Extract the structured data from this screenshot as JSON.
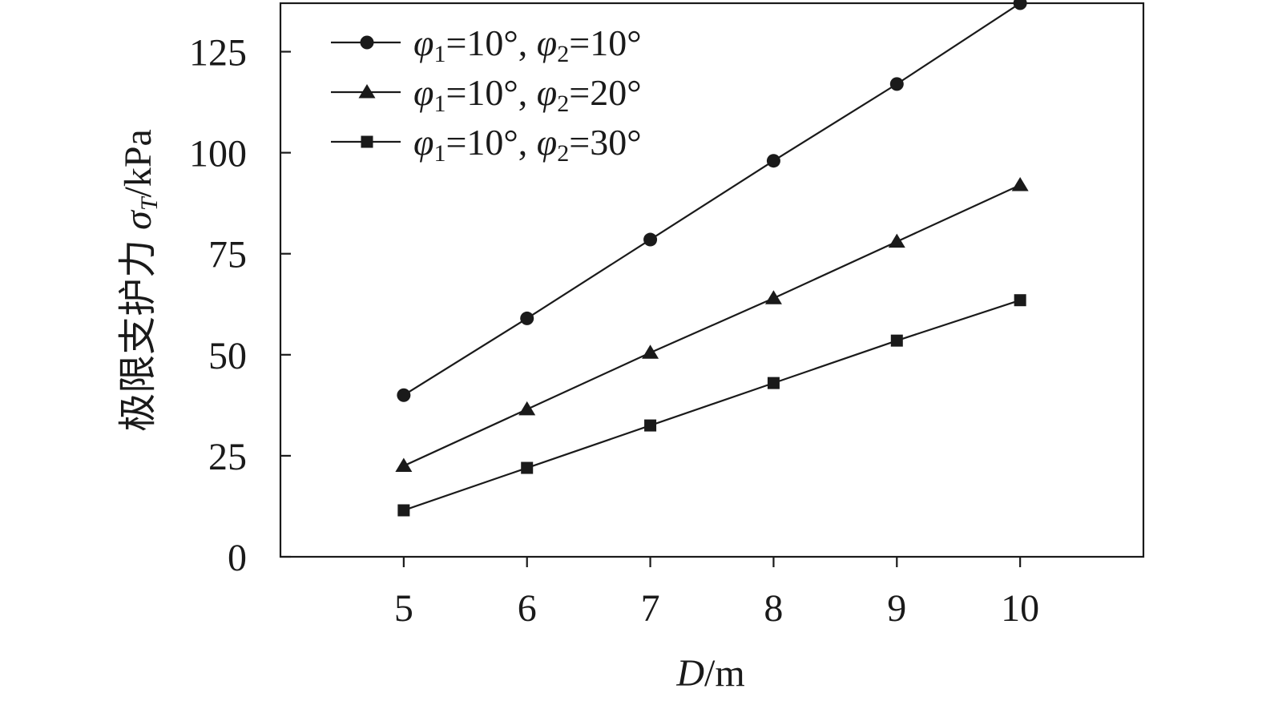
{
  "chart_data": {
    "type": "line",
    "x": [
      5,
      6,
      7,
      8,
      9,
      10
    ],
    "xlim": [
      4,
      11
    ],
    "ylim": [
      0,
      137
    ],
    "xticks": [
      "5",
      "6",
      "7",
      "8",
      "9",
      "10"
    ],
    "yticks": [
      "0",
      "25",
      "50",
      "75",
      "100",
      "125"
    ],
    "ytick_values": [
      0,
      25,
      50,
      75,
      100,
      125
    ],
    "xlabel": {
      "var": "D",
      "unit": "/m"
    },
    "ylabel": {
      "prefix": "极限支护力 ",
      "var": "σ",
      "sub": "T",
      "unit": "/kPa"
    },
    "grid": false,
    "legend_position": "top-left",
    "series": [
      {
        "name": "φ1=10°, φ2=10°",
        "legend": {
          "v1": "φ",
          "s1": "1",
          "e1": "=10°, ",
          "v2": "φ",
          "s2": "2",
          "e2": "=10°"
        },
        "marker": "circle",
        "values": [
          40,
          59,
          78.5,
          98,
          117,
          137
        ]
      },
      {
        "name": "φ1=10°, φ2=20°",
        "legend": {
          "v1": "φ",
          "s1": "1",
          "e1": "=10°, ",
          "v2": "φ",
          "s2": "2",
          "e2": "=20°"
        },
        "marker": "triangle",
        "values": [
          22.5,
          36.5,
          50.5,
          64,
          78,
          92
        ]
      },
      {
        "name": "φ1=10°, φ2=30°",
        "legend": {
          "v1": "φ",
          "s1": "1",
          "e1": "=10°, ",
          "v2": "φ",
          "s2": "2",
          "e2": "=30°"
        },
        "marker": "square",
        "values": [
          11.5,
          22,
          32.5,
          43,
          53.5,
          63.5
        ]
      }
    ],
    "colors": {
      "line": "#1a1a1a",
      "axis": "#1a1a1a"
    }
  }
}
